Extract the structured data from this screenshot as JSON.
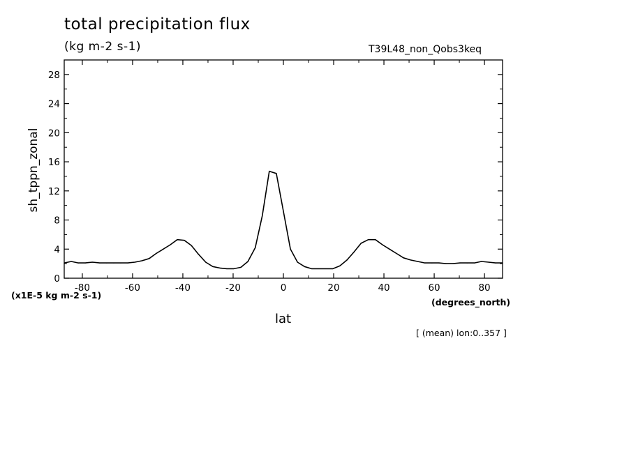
{
  "chart_data": {
    "type": "line",
    "title": "total precipitation flux",
    "units": "(kg m-2 s-1)",
    "run_name": "T39L48_non_Qobs3keq",
    "ylabel": "sh_tppn_zonal",
    "xlabel": "lat",
    "x_units": "(degrees_north)",
    "scale_note": "(x1E-5 kg m-2 s-1)",
    "mean_note": "[ (mean) lon:0..357 ]",
    "xlim": [
      -87.2,
      87.2
    ],
    "ylim": [
      0,
      30
    ],
    "x_tick_values": [
      -80,
      -60,
      -40,
      -20,
      0,
      20,
      40,
      60,
      80
    ],
    "x_tick_labels": [
      "-80",
      "-60",
      "-40",
      "-20",
      "0",
      "20",
      "40",
      "60",
      "80"
    ],
    "y_tick_values": [
      0,
      4,
      8,
      12,
      16,
      20,
      24,
      28
    ],
    "y_tick_labels": [
      "0",
      "4",
      "8",
      "12",
      "16",
      "20",
      "24",
      "28"
    ],
    "grid": false,
    "series": [
      {
        "color": "#000000",
        "x": [
          -87.2,
          -84.4,
          -81.6,
          -78.8,
          -76.0,
          -73.1,
          -70.3,
          -67.5,
          -64.7,
          -61.9,
          -59.1,
          -56.3,
          -53.4,
          -50.6,
          -47.8,
          -45.0,
          -42.2,
          -39.4,
          -36.6,
          -33.8,
          -30.9,
          -28.1,
          -25.3,
          -22.5,
          -19.7,
          -16.9,
          -14.1,
          -11.2,
          -8.4,
          -5.6,
          -2.8,
          0.0,
          2.8,
          5.6,
          8.4,
          11.2,
          14.1,
          16.9,
          19.7,
          22.5,
          25.3,
          28.1,
          30.9,
          33.8,
          36.6,
          39.4,
          42.2,
          45.0,
          47.8,
          50.6,
          53.4,
          56.3,
          59.1,
          61.9,
          64.7,
          67.5,
          70.3,
          73.1,
          76.0,
          78.8,
          81.6,
          84.4,
          87.2
        ],
        "y": [
          2.1,
          2.3,
          2.1,
          2.1,
          2.2,
          2.1,
          2.1,
          2.1,
          2.1,
          2.1,
          2.2,
          2.4,
          2.7,
          3.4,
          4.0,
          4.6,
          5.3,
          5.2,
          4.5,
          3.3,
          2.2,
          1.6,
          1.4,
          1.3,
          1.3,
          1.5,
          2.3,
          4.2,
          8.6,
          14.7,
          14.4,
          9.2,
          4.0,
          2.2,
          1.6,
          1.3,
          1.3,
          1.3,
          1.3,
          1.7,
          2.5,
          3.6,
          4.8,
          5.3,
          5.3,
          4.6,
          4.0,
          3.4,
          2.8,
          2.5,
          2.3,
          2.1,
          2.1,
          2.1,
          2.0,
          2.0,
          2.1,
          2.1,
          2.1,
          2.3,
          2.2,
          2.1,
          2.1
        ]
      }
    ]
  }
}
